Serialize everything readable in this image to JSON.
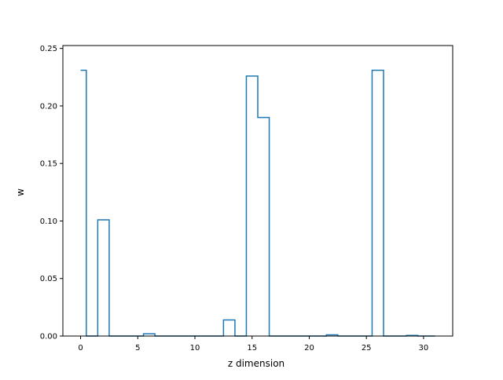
{
  "chart_data": {
    "type": "step",
    "title": "",
    "xlabel": "z dimension",
    "ylabel": "w",
    "xlim": [
      -1.55,
      32.55
    ],
    "ylim": [
      0,
      0.2525
    ],
    "grid": false,
    "legend": "none",
    "x_ticks": [
      0,
      5,
      10,
      15,
      20,
      25,
      30
    ],
    "y_ticks": [
      0.0,
      0.05,
      0.1,
      0.15,
      0.2,
      0.25
    ],
    "y_tick_labels": [
      "0.00",
      "0.05",
      "0.10",
      "0.15",
      "0.20",
      "0.25"
    ],
    "series": [
      {
        "color": "#1f77b4",
        "step": "mid",
        "x": [
          0,
          1,
          2,
          3,
          4,
          5,
          6,
          7,
          8,
          9,
          10,
          11,
          12,
          13,
          14,
          15,
          16,
          17,
          18,
          19,
          20,
          21,
          22,
          23,
          24,
          25,
          26,
          27,
          28,
          29,
          30,
          31
        ],
        "values": [
          0.231,
          0,
          0.101,
          0,
          0,
          0,
          0.002,
          0,
          0,
          0,
          0,
          0,
          0,
          0.014,
          0,
          0.226,
          0.19,
          0,
          0,
          0,
          0,
          0,
          0.001,
          0,
          0,
          0,
          0.231,
          0,
          0,
          0.0005,
          0,
          0
        ]
      }
    ]
  }
}
